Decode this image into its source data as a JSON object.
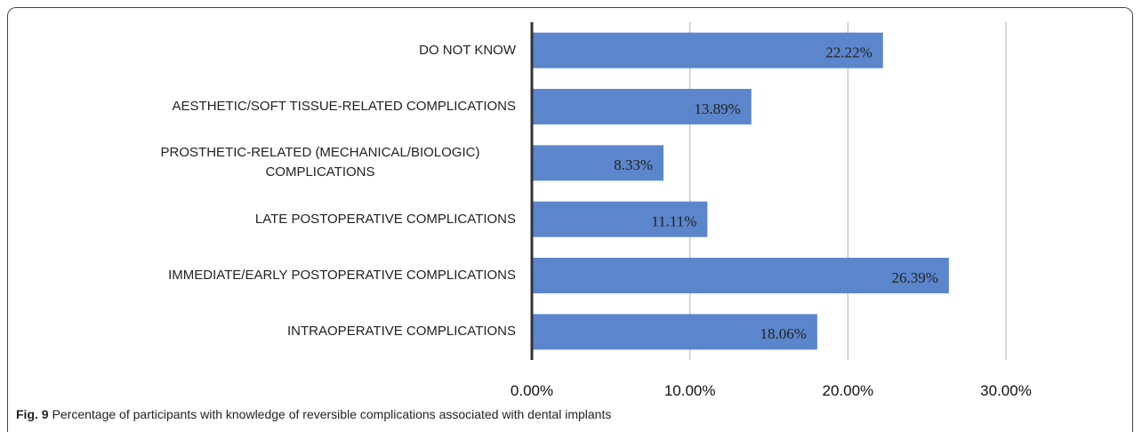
{
  "chart_data": {
    "type": "barh",
    "caption_label": "Fig. 9",
    "caption": "Percentage of participants with knowledge of reversible complications associated with dental implants",
    "categories": [
      "DO NOT KNOW",
      "AESTHETIC/SOFT TISSUE-RELATED COMPLICATIONS",
      "PROSTHETIC-RELATED (MECHANICAL/BIOLOGIC) COMPLICATIONS",
      "LATE POSTOPERATIVE COMPLICATIONS",
      "IMMEDIATE/EARLY POSTOPERATIVE COMPLICATIONS",
      "INTRAOPERATIVE COMPLICATIONS"
    ],
    "values": [
      22.22,
      13.89,
      8.33,
      11.11,
      26.39,
      18.06
    ],
    "value_labels": [
      "22.22%",
      "13.89%",
      "8.33%",
      "11.11%",
      "26.39%",
      "18.06%"
    ],
    "color": "#5b86cc",
    "xlim": [
      0,
      30
    ],
    "xticks": [
      {
        "value": 0,
        "label": "0.00%"
      },
      {
        "value": 10,
        "label": "10.00%"
      },
      {
        "value": 20,
        "label": "20.00%"
      },
      {
        "value": 30,
        "label": "30.00%"
      }
    ],
    "grid": true
  }
}
